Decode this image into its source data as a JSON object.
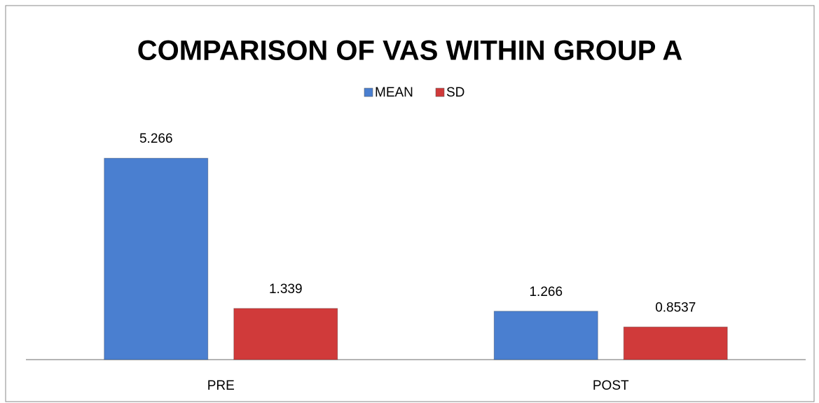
{
  "chart_data": {
    "type": "bar",
    "title": "COMPARISON OF VAS WITHIN GROUP A",
    "categories": [
      "PRE",
      "POST"
    ],
    "series": [
      {
        "name": "MEAN",
        "color": "#4a7fd0",
        "values": [
          5.266,
          1.266
        ]
      },
      {
        "name": "SD",
        "color": "#d03a3a",
        "values": [
          1.339,
          0.8537
        ]
      }
    ],
    "ylim": [
      0,
      6
    ],
    "legend": "top"
  }
}
